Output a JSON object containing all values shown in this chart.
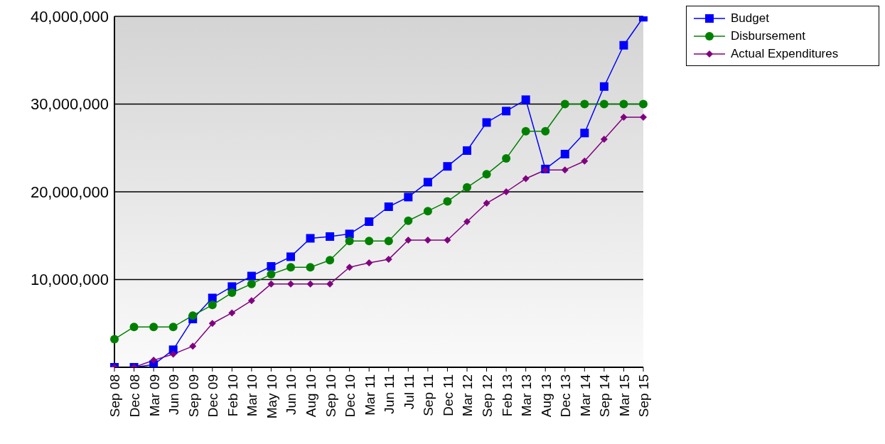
{
  "chart_data": {
    "type": "line",
    "categories": [
      "Sep 08",
      "Dec 08",
      "Mar 09",
      "Jun 09",
      "Sep 09",
      "Dec 09",
      "Feb 10",
      "Mar 10",
      "May 10",
      "Jun 10",
      "Aug 10",
      "Sep 10",
      "Dec 10",
      "Mar 11",
      "Jun 11",
      "Jul 11",
      "Sep 11",
      "Dec 11",
      "Mar 12",
      "Sep 12",
      "Feb 13",
      "Mar 13",
      "Aug 13",
      "Dec 13",
      "Mar 14",
      "Sep 14",
      "Mar 15",
      "Sep 15"
    ],
    "series": [
      {
        "name": "Budget",
        "color": "#0000ff",
        "marker": "square",
        "values": [
          0,
          0,
          300000,
          2000000,
          5500000,
          7900000,
          9200000,
          10400000,
          11500000,
          12600000,
          14700000,
          14900000,
          15200000,
          16600000,
          18300000,
          19400000,
          21100000,
          22900000,
          24700000,
          27900000,
          29200000,
          30500000,
          22600000,
          24300000,
          26700000,
          32000000,
          36700000,
          39900000
        ]
      },
      {
        "name": "Disbursement",
        "color": "#008000",
        "marker": "circle",
        "values": [
          3200000,
          4600000,
          4600000,
          4600000,
          5900000,
          7100000,
          8500000,
          9500000,
          10600000,
          11400000,
          11400000,
          12200000,
          14400000,
          14400000,
          14400000,
          16700000,
          17800000,
          18900000,
          20500000,
          22000000,
          23800000,
          26900000,
          26900000,
          30000000,
          30000000,
          30000000,
          30000000,
          30000000
        ]
      },
      {
        "name": "Actual Expenditures",
        "color": "#800080",
        "marker": "diamond",
        "values": [
          0,
          0,
          800000,
          1500000,
          2400000,
          5000000,
          6200000,
          7600000,
          9500000,
          9500000,
          9500000,
          9500000,
          11400000,
          11900000,
          12300000,
          14500000,
          14500000,
          14500000,
          16600000,
          18700000,
          20000000,
          21500000,
          22500000,
          22500000,
          23500000,
          26000000,
          28500000,
          28500000
        ]
      }
    ],
    "ylim": [
      0,
      40000000
    ],
    "yticks": [
      {
        "value": 0,
        "label": null
      },
      {
        "value": 10000000,
        "label": "10,000,000"
      },
      {
        "value": 20000000,
        "label": "20,000,000"
      },
      {
        "value": 30000000,
        "label": "30,000,000"
      },
      {
        "value": 40000000,
        "label": "40,000,000"
      }
    ],
    "grid": "y",
    "legend": "top right",
    "line_style": "solid"
  }
}
